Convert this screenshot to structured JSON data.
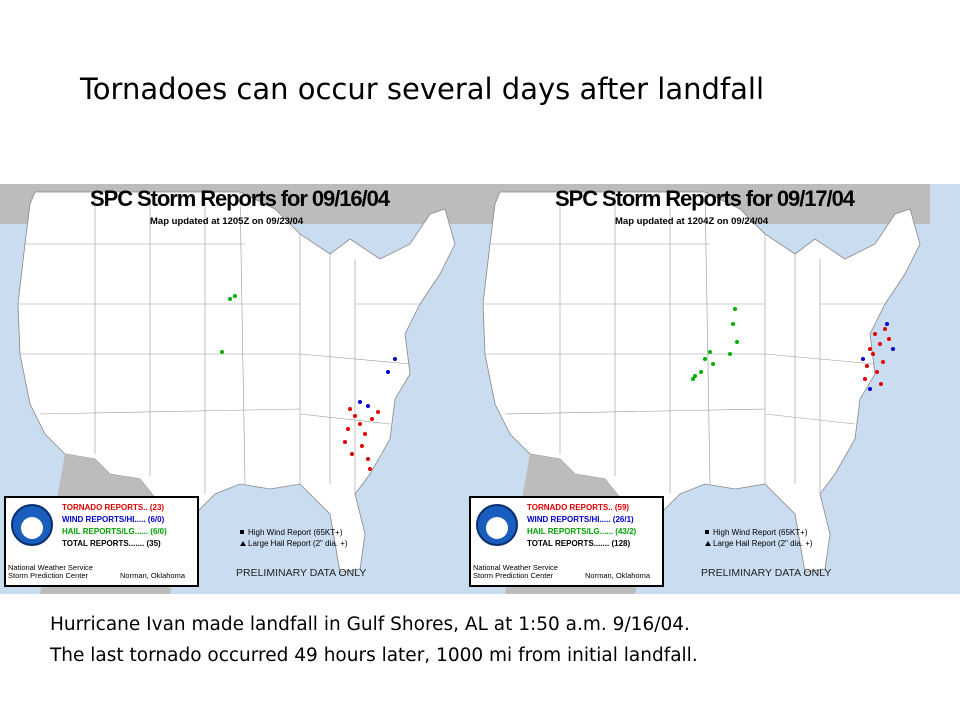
{
  "title": "Tornadoes can occur several days after landfall",
  "maps": [
    {
      "title": "SPC Storm Reports for 09/16/04",
      "updated": "Map updated at 1205Z on 09/23/04",
      "legend": [
        "TORNADO REPORTS.. (23)",
        "WIND REPORTS/HI..... (6/0)",
        "HAIL REPORTS/LG...... (6/0)",
        "TOTAL REPORTS....... (35)"
      ],
      "key": [
        "High Wind Report (65KT+)",
        "Large Hail Report (2\" dia. +)"
      ],
      "office": [
        "National Weather Service",
        "Storm Prediction Center"
      ],
      "city": "Norman, Oklahoma",
      "preliminary": "PRELIMINARY DATA ONLY"
    },
    {
      "title": "SPC Storm Reports for 09/17/04",
      "updated": "Map updated at 1204Z on 09/24/04",
      "legend": [
        "TORNADO REPORTS.. (59)",
        "WIND REPORTS/HI..... (26/1)",
        "HAIL REPORTS/LG...... (43/2)",
        "TOTAL REPORTS....... (128)"
      ],
      "key": [
        "High Wind Report (65KT+)",
        "Large Hail Report (2\" dia. +)"
      ],
      "office": [
        "National Weather Service",
        "Storm Prediction Center"
      ],
      "city": "Norman, Oklahoma",
      "preliminary": "PRELIMINARY DATA ONLY"
    }
  ],
  "caption": [
    "Hurricane Ivan made landfall in Gulf Shores, AL at 1:50 a.m. 9/16/04.",
    "The last tornado occurred 49 hours later, 1000 mi from initial landfall."
  ]
}
